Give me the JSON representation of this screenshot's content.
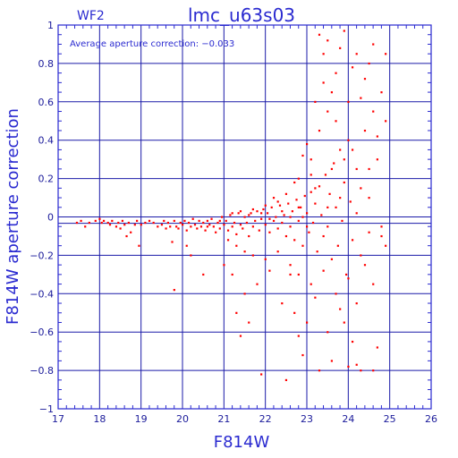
{
  "chart_data": {
    "type": "scatter",
    "title": "lmc_u63s03",
    "subtitle": "WF2",
    "annotation": "Average aperture correction: −0.033",
    "xlabel": "F814W",
    "ylabel": "F814W aperture correction",
    "xlim": [
      17,
      26
    ],
    "ylim": [
      -1,
      1
    ],
    "x_ticks": [
      17,
      18,
      19,
      20,
      21,
      22,
      23,
      24,
      25,
      26
    ],
    "y_ticks": [
      -1,
      -0.8,
      -0.6,
      -0.4,
      -0.2,
      0,
      0.2,
      0.4,
      0.6,
      0.8,
      1
    ],
    "y_tick_labels": [
      "−1",
      "−0.8",
      "−0.6",
      "−0.4",
      "−0.2",
      "0",
      "0.2",
      "0.4",
      "0.6",
      "0.8",
      "1"
    ],
    "reference_line_y": -0.033,
    "zero_line_y": 0,
    "grid": true,
    "point_color": "#ff0000",
    "axis_color": "#2a2ad0",
    "grid_color": "#1a1aa8",
    "points": [
      [
        17.45,
        -0.03
      ],
      [
        17.55,
        -0.02
      ],
      [
        17.65,
        -0.05
      ],
      [
        17.75,
        -0.03
      ],
      [
        17.9,
        -0.02
      ],
      [
        18.0,
        -0.01
      ],
      [
        18.05,
        -0.03
      ],
      [
        18.1,
        -0.02
      ],
      [
        18.2,
        -0.03
      ],
      [
        18.25,
        -0.04
      ],
      [
        18.3,
        -0.02
      ],
      [
        18.4,
        -0.05
      ],
      [
        18.45,
        -0.03
      ],
      [
        18.5,
        -0.06
      ],
      [
        18.55,
        -0.02
      ],
      [
        18.6,
        -0.04
      ],
      [
        18.65,
        -0.1
      ],
      [
        18.7,
        -0.03
      ],
      [
        18.75,
        -0.08
      ],
      [
        18.85,
        -0.04
      ],
      [
        18.9,
        -0.02
      ],
      [
        18.95,
        -0.15
      ],
      [
        19.0,
        -0.04
      ],
      [
        19.1,
        -0.03
      ],
      [
        19.2,
        -0.02
      ],
      [
        19.3,
        -0.03
      ],
      [
        19.4,
        -0.05
      ],
      [
        19.5,
        -0.04
      ],
      [
        19.55,
        -0.02
      ],
      [
        19.6,
        -0.06
      ],
      [
        19.65,
        -0.03
      ],
      [
        19.7,
        -0.05
      ],
      [
        19.75,
        -0.13
      ],
      [
        19.8,
        -0.02
      ],
      [
        19.85,
        -0.05
      ],
      [
        19.9,
        -0.06
      ],
      [
        19.95,
        -0.03
      ],
      [
        20.0,
        -0.04
      ],
      [
        20.05,
        -0.02
      ],
      [
        20.1,
        -0.07
      ],
      [
        20.15,
        -0.03
      ],
      [
        20.2,
        -0.05
      ],
      [
        20.25,
        -0.01
      ],
      [
        20.3,
        -0.04
      ],
      [
        20.35,
        -0.06
      ],
      [
        20.4,
        -0.02
      ],
      [
        20.45,
        -0.05
      ],
      [
        20.5,
        -0.03
      ],
      [
        20.55,
        -0.07
      ],
      [
        20.6,
        -0.02
      ],
      [
        20.65,
        -0.04
      ],
      [
        20.7,
        -0.01
      ],
      [
        20.75,
        -0.05
      ],
      [
        20.8,
        -0.08
      ],
      [
        20.85,
        -0.03
      ],
      [
        20.9,
        -0.06
      ],
      [
        20.95,
        0.0
      ],
      [
        21.0,
        -0.04
      ],
      [
        21.05,
        -0.02
      ],
      [
        21.1,
        -0.07
      ],
      [
        21.15,
        0.01
      ],
      [
        21.2,
        -0.05
      ],
      [
        21.25,
        -0.03
      ],
      [
        21.3,
        -0.09
      ],
      [
        21.35,
        0.02
      ],
      [
        21.4,
        -0.04
      ],
      [
        21.45,
        -0.06
      ],
      [
        21.5,
        0.0
      ],
      [
        21.55,
        -0.03
      ],
      [
        21.6,
        -0.1
      ],
      [
        21.65,
        0.02
      ],
      [
        21.7,
        -0.05
      ],
      [
        21.75,
        -0.02
      ],
      [
        21.8,
        0.03
      ],
      [
        21.85,
        -0.07
      ],
      [
        21.9,
        -0.01
      ],
      [
        21.95,
        0.04
      ],
      [
        22.0,
        -0.04
      ],
      [
        22.05,
        0.02
      ],
      [
        22.1,
        -0.08
      ],
      [
        22.15,
        0.05
      ],
      [
        22.2,
        -0.02
      ],
      [
        22.25,
        0.0
      ],
      [
        22.3,
        -0.06
      ],
      [
        22.35,
        0.06
      ],
      [
        22.4,
        -0.03
      ],
      [
        22.45,
        0.01
      ],
      [
        22.5,
        -0.1
      ],
      [
        22.55,
        0.07
      ],
      [
        22.6,
        -0.05
      ],
      [
        22.65,
        0.03
      ],
      [
        22.7,
        -0.12
      ],
      [
        22.75,
        0.09
      ],
      [
        22.8,
        -0.02
      ],
      [
        22.85,
        0.05
      ],
      [
        22.9,
        -0.15
      ],
      [
        22.95,
        0.11
      ],
      [
        23.0,
        0.02
      ],
      [
        23.05,
        -0.08
      ],
      [
        23.1,
        0.13
      ],
      [
        23.15,
        -0.03
      ],
      [
        23.2,
        0.07
      ],
      [
        23.25,
        -0.18
      ],
      [
        23.3,
        0.16
      ],
      [
        23.35,
        0.01
      ],
      [
        23.4,
        -0.1
      ],
      [
        23.45,
        0.22
      ],
      [
        23.5,
        -0.05
      ],
      [
        23.55,
        0.12
      ],
      [
        23.6,
        -0.22
      ],
      [
        23.65,
        0.28
      ],
      [
        23.7,
        0.05
      ],
      [
        23.75,
        -0.15
      ],
      [
        23.8,
        0.35
      ],
      [
        23.85,
        -0.02
      ],
      [
        23.9,
        0.18
      ],
      [
        23.95,
        -0.3
      ],
      [
        24.0,
        0.4
      ],
      [
        24.05,
        0.08
      ],
      [
        24.1,
        -0.12
      ],
      [
        24.2,
        0.25
      ],
      [
        24.3,
        -0.2
      ],
      [
        24.4,
        0.45
      ],
      [
        24.5,
        0.1
      ],
      [
        24.6,
        -0.35
      ],
      [
        24.7,
        0.3
      ],
      [
        24.8,
        -0.1
      ],
      [
        24.9,
        0.5
      ],
      [
        21.0,
        -0.25
      ],
      [
        21.2,
        -0.3
      ],
      [
        21.5,
        -0.4
      ],
      [
        21.8,
        -0.35
      ],
      [
        22.1,
        -0.28
      ],
      [
        22.4,
        -0.45
      ],
      [
        22.7,
        -0.5
      ],
      [
        23.0,
        -0.55
      ],
      [
        23.2,
        -0.42
      ],
      [
        23.5,
        -0.6
      ],
      [
        23.8,
        -0.48
      ],
      [
        24.1,
        -0.65
      ],
      [
        21.3,
        -0.5
      ],
      [
        21.6,
        -0.55
      ],
      [
        22.9,
        -0.72
      ],
      [
        23.3,
        -0.8
      ],
      [
        23.6,
        -0.75
      ],
      [
        24.0,
        -0.78
      ],
      [
        24.3,
        -0.8
      ],
      [
        24.7,
        -0.68
      ],
      [
        24.6,
        -0.8
      ],
      [
        24.2,
        -0.77
      ],
      [
        20.2,
        -0.2
      ],
      [
        20.5,
        -0.3
      ],
      [
        20.1,
        -0.15
      ],
      [
        19.8,
        -0.38
      ],
      [
        21.4,
        -0.62
      ],
      [
        22.5,
        -0.85
      ],
      [
        22.8,
        -0.62
      ],
      [
        21.9,
        -0.82
      ],
      [
        22.6,
        -0.3
      ],
      [
        23.9,
        -0.55
      ],
      [
        23.1,
        0.3
      ],
      [
        23.3,
        0.45
      ],
      [
        23.5,
        0.55
      ],
      [
        23.6,
        0.65
      ],
      [
        23.7,
        0.75
      ],
      [
        23.4,
        0.85
      ],
      [
        23.3,
        0.95
      ],
      [
        23.5,
        0.92
      ],
      [
        23.8,
        0.88
      ],
      [
        23.9,
        0.97
      ],
      [
        24.1,
        0.78
      ],
      [
        24.2,
        0.85
      ],
      [
        24.4,
        0.72
      ],
      [
        24.3,
        0.62
      ],
      [
        24.5,
        0.8
      ],
      [
        24.6,
        0.55
      ],
      [
        23.2,
        0.6
      ],
      [
        23.0,
        0.38
      ],
      [
        22.8,
        0.2
      ],
      [
        22.9,
        0.32
      ],
      [
        23.4,
        0.7
      ],
      [
        23.7,
        0.5
      ],
      [
        24.0,
        0.6
      ],
      [
        24.1,
        0.35
      ],
      [
        24.3,
        0.15
      ],
      [
        24.5,
        0.25
      ],
      [
        24.7,
        0.42
      ],
      [
        24.8,
        0.65
      ],
      [
        24.9,
        0.85
      ],
      [
        24.6,
        0.9
      ],
      [
        23.6,
        0.25
      ],
      [
        23.2,
        0.15
      ],
      [
        22.5,
        0.12
      ],
      [
        22.3,
        0.08
      ],
      [
        22.0,
        0.06
      ],
      [
        21.7,
        0.04
      ],
      [
        22.2,
        0.1
      ],
      [
        22.7,
        0.18
      ],
      [
        23.1,
        0.22
      ],
      [
        23.9,
        0.3
      ],
      [
        21.2,
        0.02
      ],
      [
        21.4,
        0.03
      ],
      [
        21.6,
        0.01
      ],
      [
        21.9,
        0.02
      ],
      [
        22.1,
        -0.01
      ],
      [
        22.4,
        0.03
      ],
      [
        22.6,
        0.0
      ],
      [
        22.8,
        0.05
      ],
      [
        20.6,
        -0.05
      ],
      [
        20.9,
        -0.02
      ],
      [
        21.1,
        -0.12
      ],
      [
        21.3,
        -0.15
      ],
      [
        21.5,
        -0.18
      ],
      [
        21.7,
        -0.2
      ],
      [
        22.0,
        -0.22
      ],
      [
        22.3,
        -0.18
      ],
      [
        22.6,
        -0.25
      ],
      [
        22.8,
        -0.3
      ],
      [
        23.1,
        -0.35
      ],
      [
        23.4,
        -0.28
      ],
      [
        23.7,
        -0.4
      ],
      [
        24.0,
        -0.32
      ],
      [
        24.2,
        -0.45
      ],
      [
        24.4,
        -0.25
      ],
      [
        24.8,
        -0.05
      ],
      [
        24.9,
        -0.15
      ],
      [
        24.5,
        -0.08
      ],
      [
        23.8,
        0.1
      ],
      [
        24.2,
        0.02
      ],
      [
        23.5,
        0.05
      ],
      [
        23.0,
        -0.05
      ],
      [
        22.9,
        0.0
      ]
    ]
  }
}
